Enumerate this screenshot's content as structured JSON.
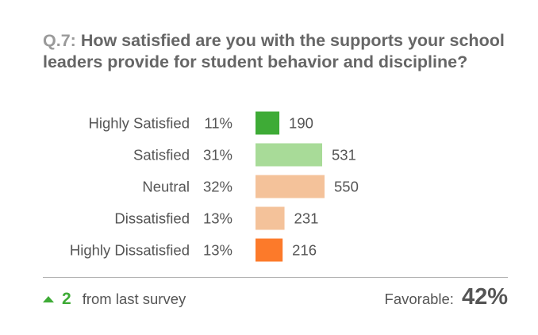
{
  "question": {
    "number": "Q.7:",
    "text": "How satisfied are you with the supports your school leaders provide for student behavior and discipline?"
  },
  "chart_data": {
    "type": "bar",
    "orientation": "horizontal",
    "categories": [
      "Highly Satisfied",
      "Satisfied",
      "Neutral",
      "Dissatisfied",
      "Highly Dissatisfied"
    ],
    "percentages": [
      "11%",
      "31%",
      "32%",
      "13%",
      "13%"
    ],
    "values": [
      190,
      531,
      550,
      231,
      216
    ],
    "colors": [
      "#3eab36",
      "#a8db98",
      "#f4c29a",
      "#f4c29a",
      "#fc7a2a"
    ]
  },
  "footer": {
    "change_value": "2",
    "change_label": "from last survey",
    "favorable_label": "Favorable:",
    "favorable_value": "42%",
    "change_color": "#3eab36"
  }
}
